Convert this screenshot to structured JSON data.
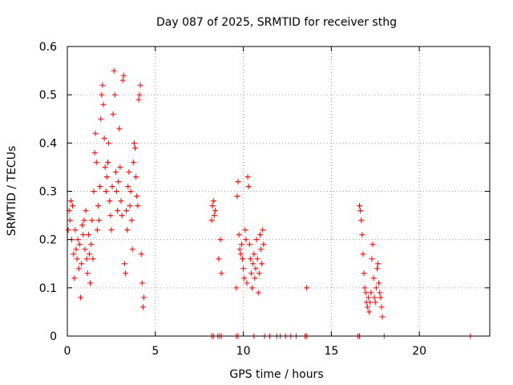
{
  "chart_data": {
    "type": "scatter",
    "title": "Day 087 of 2025, SRMTID for receiver sthg",
    "xlabel": "GPS time / hours",
    "ylabel": "SRMTID / TECUs",
    "xlim": [
      0,
      24
    ],
    "ylim": [
      0,
      0.6
    ],
    "x_ticks": [
      0,
      5,
      10,
      15,
      20
    ],
    "y_ticks": [
      0,
      0.1,
      0.2,
      0.3,
      0.4,
      0.5,
      0.6
    ],
    "x_tick_labels": [
      "0",
      "5",
      "10",
      "15",
      "20"
    ],
    "y_tick_labels": [
      "0",
      "0.1",
      "0.2",
      "0.3",
      "0.4",
      "0.5",
      "0.6"
    ],
    "grid": true,
    "marker": "+",
    "color": "#ff0000",
    "series": [
      {
        "name": "SRMTID",
        "points": [
          [
            0.05,
            0.22
          ],
          [
            0.1,
            0.26
          ],
          [
            0.15,
            0.24
          ],
          [
            0.2,
            0.28
          ],
          [
            0.25,
            0.2
          ],
          [
            0.3,
            0.27
          ],
          [
            0.35,
            0.17
          ],
          [
            0.4,
            0.12
          ],
          [
            0.45,
            0.22
          ],
          [
            0.5,
            0.18
          ],
          [
            0.55,
            0.16
          ],
          [
            0.6,
            0.2
          ],
          [
            0.65,
            0.14
          ],
          [
            0.7,
            0.19
          ],
          [
            0.75,
            0.08
          ],
          [
            0.8,
            0.15
          ],
          [
            0.85,
            0.23
          ],
          [
            0.9,
            0.21
          ],
          [
            0.95,
            0.24
          ],
          [
            1.0,
            0.18
          ],
          [
            1.05,
            0.26
          ],
          [
            1.1,
            0.16
          ],
          [
            1.15,
            0.13
          ],
          [
            1.2,
            0.21
          ],
          [
            1.25,
            0.17
          ],
          [
            1.3,
            0.11
          ],
          [
            1.35,
            0.19
          ],
          [
            1.4,
            0.24
          ],
          [
            1.45,
            0.16
          ],
          [
            1.5,
            0.3
          ],
          [
            1.55,
            0.38
          ],
          [
            1.6,
            0.42
          ],
          [
            1.65,
            0.36
          ],
          [
            1.7,
            0.22
          ],
          [
            1.75,
            0.27
          ],
          [
            1.8,
            0.24
          ],
          [
            1.85,
            0.31
          ],
          [
            1.9,
            0.45
          ],
          [
            1.95,
            0.5
          ],
          [
            2.0,
            0.52
          ],
          [
            2.05,
            0.48
          ],
          [
            2.1,
            0.41
          ],
          [
            2.15,
            0.35
          ],
          [
            2.2,
            0.3
          ],
          [
            2.25,
            0.33
          ],
          [
            2.3,
            0.36
          ],
          [
            2.35,
            0.4
          ],
          [
            2.4,
            0.28
          ],
          [
            2.45,
            0.25
          ],
          [
            2.5,
            0.22
          ],
          [
            2.55,
            0.31
          ],
          [
            2.6,
            0.46
          ],
          [
            2.65,
            0.55
          ],
          [
            2.7,
            0.5
          ],
          [
            2.75,
            0.34
          ],
          [
            2.8,
            0.3
          ],
          [
            2.85,
            0.26
          ],
          [
            2.9,
            0.32
          ],
          [
            2.95,
            0.43
          ],
          [
            3.0,
            0.35
          ],
          [
            3.05,
            0.28
          ],
          [
            3.1,
            0.25
          ],
          [
            3.15,
            0.53
          ],
          [
            3.2,
            0.54
          ],
          [
            3.25,
            0.15
          ],
          [
            3.3,
            0.13
          ],
          [
            3.35,
            0.26
          ],
          [
            3.4,
            0.22
          ],
          [
            3.45,
            0.31
          ],
          [
            3.5,
            0.34
          ],
          [
            3.55,
            0.27
          ],
          [
            3.6,
            0.3
          ],
          [
            3.65,
            0.24
          ],
          [
            3.7,
            0.18
          ],
          [
            3.75,
            0.36
          ],
          [
            3.8,
            0.4
          ],
          [
            3.85,
            0.39
          ],
          [
            3.9,
            0.33
          ],
          [
            3.95,
            0.29
          ],
          [
            4.0,
            0.27
          ],
          [
            4.05,
            0.49
          ],
          [
            4.1,
            0.5
          ],
          [
            4.15,
            0.52
          ],
          [
            4.2,
            0.17
          ],
          [
            4.25,
            0.11
          ],
          [
            4.3,
            0.06
          ],
          [
            4.35,
            0.08
          ],
          [
            8.2,
            0.24
          ],
          [
            8.25,
            0.27
          ],
          [
            8.3,
            0.28
          ],
          [
            8.35,
            0.25
          ],
          [
            8.4,
            0.26
          ],
          [
            8.6,
            0.16
          ],
          [
            8.7,
            0.2
          ],
          [
            8.75,
            0.13
          ],
          [
            9.6,
            0.1
          ],
          [
            9.65,
            0.29
          ],
          [
            9.7,
            0.32
          ],
          [
            9.75,
            0.21
          ],
          [
            9.8,
            0.18
          ],
          [
            9.85,
            0.17
          ],
          [
            9.9,
            0.19
          ],
          [
            9.95,
            0.16
          ],
          [
            10.0,
            0.14
          ],
          [
            10.05,
            0.12
          ],
          [
            10.1,
            0.22
          ],
          [
            10.15,
            0.2
          ],
          [
            10.2,
            0.11
          ],
          [
            10.25,
            0.33
          ],
          [
            10.3,
            0.31
          ],
          [
            10.35,
            0.19
          ],
          [
            10.4,
            0.16
          ],
          [
            10.45,
            0.13
          ],
          [
            10.5,
            0.1
          ],
          [
            10.55,
            0.15
          ],
          [
            10.6,
            0.17
          ],
          [
            10.65,
            0.12
          ],
          [
            10.7,
            0.14
          ],
          [
            10.75,
            0.2
          ],
          [
            10.8,
            0.16
          ],
          [
            10.85,
            0.09
          ],
          [
            10.9,
            0.13
          ],
          [
            10.95,
            0.21
          ],
          [
            11.0,
            0.18
          ],
          [
            11.05,
            0.15
          ],
          [
            11.1,
            0.22
          ],
          [
            11.15,
            0.19
          ],
          [
            13.6,
            0.1
          ],
          [
            16.6,
            0.27
          ],
          [
            16.65,
            0.26
          ],
          [
            16.7,
            0.24
          ],
          [
            16.75,
            0.21
          ],
          [
            16.8,
            0.17
          ],
          [
            16.85,
            0.13
          ],
          [
            16.9,
            0.1
          ],
          [
            16.95,
            0.09
          ],
          [
            17.0,
            0.07
          ],
          [
            17.05,
            0.06
          ],
          [
            17.1,
            0.08
          ],
          [
            17.15,
            0.05
          ],
          [
            17.2,
            0.07
          ],
          [
            17.25,
            0.09
          ],
          [
            17.3,
            0.16
          ],
          [
            17.35,
            0.19
          ],
          [
            17.4,
            0.12
          ],
          [
            17.45,
            0.08
          ],
          [
            17.5,
            0.07
          ],
          [
            17.55,
            0.1
          ],
          [
            17.6,
            0.14
          ],
          [
            17.65,
            0.15
          ],
          [
            17.7,
            0.11
          ],
          [
            17.75,
            0.09
          ],
          [
            17.8,
            0.08
          ],
          [
            17.85,
            0.06
          ],
          [
            17.9,
            0.04
          ],
          [
            8.2,
            0.0
          ],
          [
            8.3,
            0.0
          ],
          [
            8.55,
            0.0
          ],
          [
            8.65,
            0.0
          ],
          [
            8.75,
            0.0
          ],
          [
            9.6,
            0.0
          ],
          [
            9.7,
            0.0
          ],
          [
            10.6,
            0.0
          ],
          [
            11.2,
            0.0
          ],
          [
            11.5,
            0.0
          ],
          [
            11.9,
            0.0
          ],
          [
            12.1,
            0.0
          ],
          [
            12.4,
            0.0
          ],
          [
            12.7,
            0.0
          ],
          [
            13.0,
            0.0
          ],
          [
            13.5,
            0.0
          ],
          [
            13.6,
            0.0
          ],
          [
            16.5,
            0.0
          ],
          [
            16.6,
            0.0
          ],
          [
            18.0,
            0.0
          ],
          [
            22.9,
            0.0
          ]
        ]
      }
    ]
  }
}
